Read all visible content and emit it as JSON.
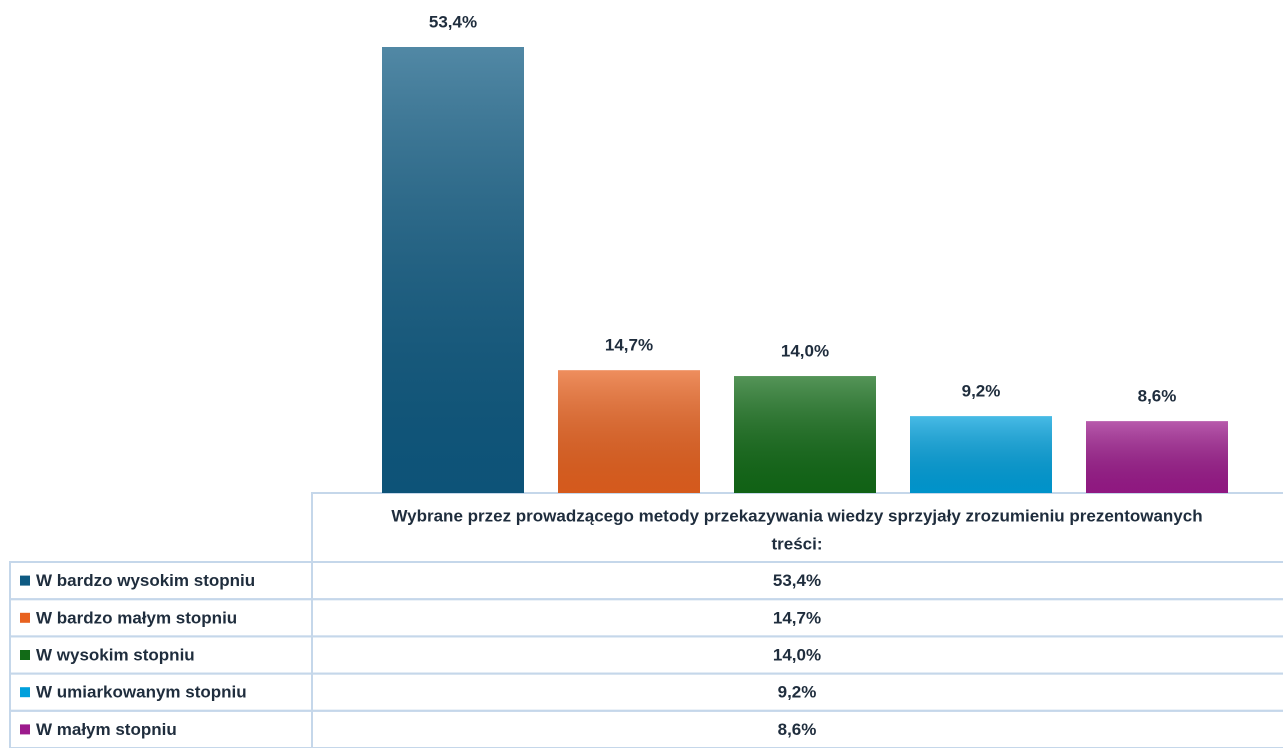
{
  "chart_data": {
    "type": "bar",
    "categories": [
      "Wybrane przez prowadzącego metody przekazywania wiedzy sprzyjały zrozumieniu prezentowanych treści:"
    ],
    "series": [
      {
        "name": "W bardzo wysokim stopniu",
        "color": "#0e5a82",
        "values": [
          53.4
        ],
        "value_labels": [
          "53,4%"
        ]
      },
      {
        "name": "W bardzo małym stopniu",
        "color": "#e8621f",
        "values": [
          14.7
        ],
        "value_labels": [
          "14,7%"
        ]
      },
      {
        "name": "W wysokim stopniu",
        "color": "#126b17",
        "values": [
          14.0
        ],
        "value_labels": [
          "14,0%"
        ]
      },
      {
        "name": "W umiarkowanym stopniu",
        "color": "#00a0dc",
        "values": [
          9.2
        ],
        "value_labels": [
          "9,2%"
        ]
      },
      {
        "name": "W małym stopniu",
        "color": "#9c1a8c",
        "values": [
          8.6
        ],
        "value_labels": [
          "8,6%"
        ]
      }
    ]
  }
}
